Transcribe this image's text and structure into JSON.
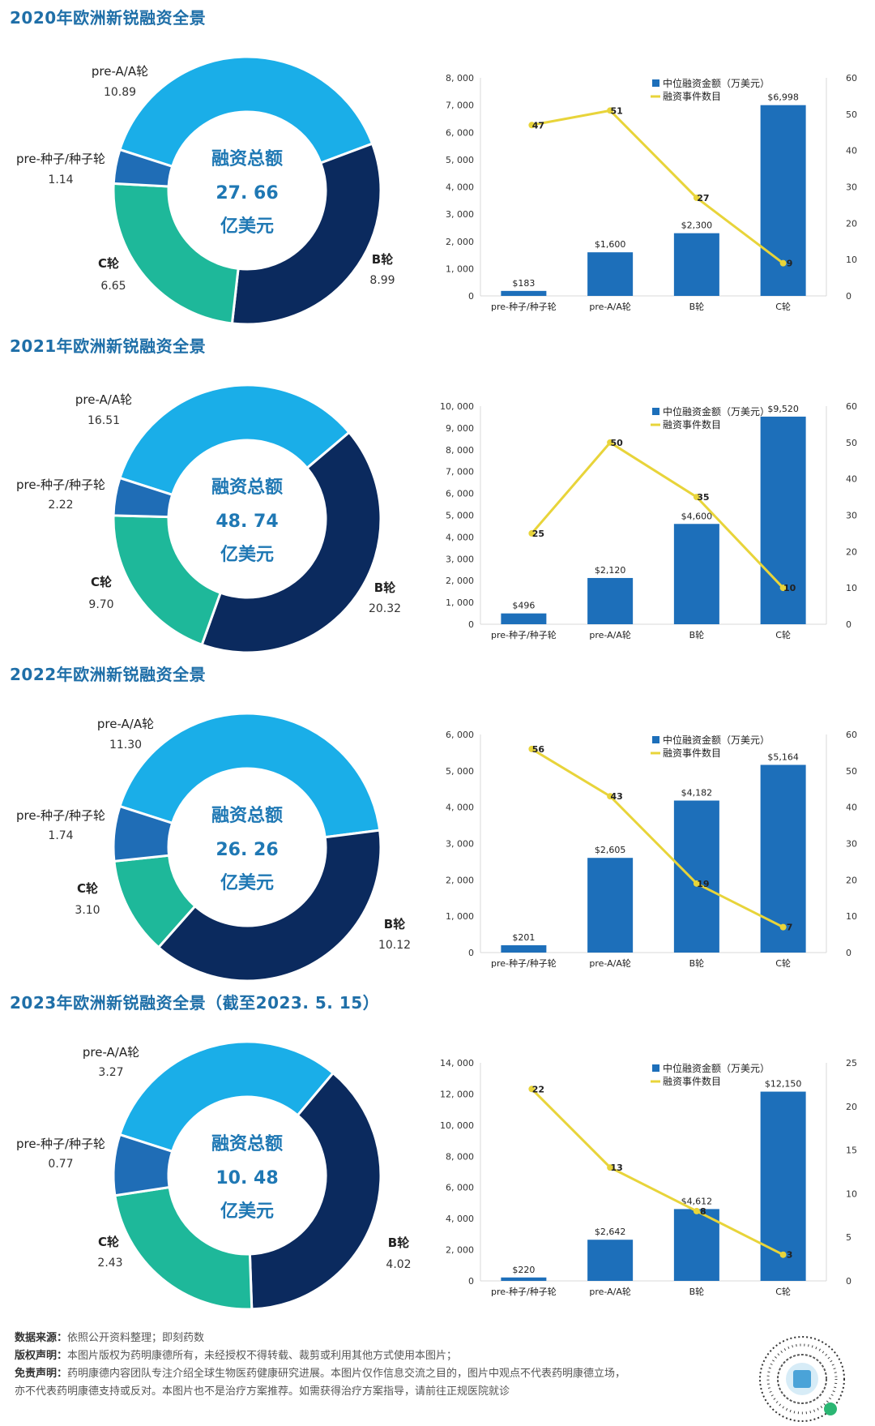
{
  "colors": {
    "light_blue": "#1aaee8",
    "dark_navy": "#0b2a5e",
    "teal": "#1eb89a",
    "mid_blue": "#1f6db6",
    "bar_blue": "#1d6fba",
    "line_yellow": "#e8d43a",
    "title_blue": "#1f6fa8"
  },
  "center_text": {
    "line1": "融资总额",
    "line3": "亿美元"
  },
  "legend": {
    "bar": "中位融资金额（万美元）",
    "line": "融资事件数目"
  },
  "sections": [
    {
      "title": "2020年欧洲新锐融资全景",
      "donut": {
        "total": "27. 66",
        "slices": [
          {
            "name": "pre-A/A轮",
            "value": "10.89",
            "color": "light_blue"
          },
          {
            "name": "B轮",
            "value": "8.99",
            "color": "dark_navy"
          },
          {
            "name": "C轮",
            "value": "6.65",
            "color": "teal"
          },
          {
            "name": "pre-种子/种子轮",
            "value": "1.14",
            "color": "mid_blue"
          }
        ]
      },
      "chart_data": {
        "type": "bar",
        "categories": [
          "pre-种子/种子轮",
          "pre-A/A轮",
          "B轮",
          "C轮"
        ],
        "series": [
          {
            "name": "中位融资金额（万美元）",
            "type": "bar",
            "axis": "left",
            "values": [
              183,
              1600,
              2300,
              6998
            ],
            "labels": [
              "$183",
              "$1,600",
              "$2,300",
              "$6,998"
            ]
          },
          {
            "name": "融资事件数目",
            "type": "line",
            "axis": "right",
            "values": [
              47,
              51,
              27,
              9
            ],
            "labels": [
              "47",
              "51",
              "27",
              "9"
            ]
          }
        ],
        "ylim": [
          0,
          8000
        ],
        "yticks": [
          "0",
          "1, 000",
          "2, 000",
          "3, 000",
          "4, 000",
          "5, 000",
          "6, 000",
          "7, 000",
          "8, 000"
        ],
        "y2lim": [
          0,
          60
        ],
        "y2ticks": [
          "0",
          "10",
          "20",
          "30",
          "40",
          "50",
          "60"
        ],
        "legend_position": "top-right"
      }
    },
    {
      "title": "2021年欧洲新锐融资全景",
      "donut": {
        "total": "48. 74",
        "slices": [
          {
            "name": "pre-A/A轮",
            "value": "16.51",
            "color": "light_blue"
          },
          {
            "name": "B轮",
            "value": "20.32",
            "color": "dark_navy"
          },
          {
            "name": "C轮",
            "value": "9.70",
            "color": "teal"
          },
          {
            "name": "pre-种子/种子轮",
            "value": "2.22",
            "color": "mid_blue"
          }
        ]
      },
      "chart_data": {
        "type": "bar",
        "categories": [
          "pre-种子/种子轮",
          "pre-A/A轮",
          "B轮",
          "C轮"
        ],
        "series": [
          {
            "name": "中位融资金额（万美元）",
            "type": "bar",
            "axis": "left",
            "values": [
              496,
              2120,
              4600,
              9520
            ],
            "labels": [
              "$496",
              "$2,120",
              "$4,600",
              "$9,520"
            ]
          },
          {
            "name": "融资事件数目",
            "type": "line",
            "axis": "right",
            "values": [
              25,
              50,
              35,
              10
            ],
            "labels": [
              "25",
              "50",
              "35",
              "10"
            ]
          }
        ],
        "ylim": [
          0,
          10000
        ],
        "yticks": [
          "0",
          "1, 000",
          "2, 000",
          "3, 000",
          "4, 000",
          "5, 000",
          "6, 000",
          "7, 000",
          "8, 000",
          "9, 000",
          "10, 000"
        ],
        "y2lim": [
          0,
          60
        ],
        "y2ticks": [
          "0",
          "10",
          "20",
          "30",
          "40",
          "50",
          "60"
        ],
        "legend_position": "top-right"
      }
    },
    {
      "title": "2022年欧洲新锐融资全景",
      "donut": {
        "total": "26. 26",
        "slices": [
          {
            "name": "pre-A/A轮",
            "value": "11.30",
            "color": "light_blue"
          },
          {
            "name": "B轮",
            "value": "10.12",
            "color": "dark_navy"
          },
          {
            "name": "C轮",
            "value": "3.10",
            "color": "teal"
          },
          {
            "name": "pre-种子/种子轮",
            "value": "1.74",
            "color": "mid_blue"
          }
        ]
      },
      "chart_data": {
        "type": "bar",
        "categories": [
          "pre-种子/种子轮",
          "pre-A/A轮",
          "B轮",
          "C轮"
        ],
        "series": [
          {
            "name": "中位融资金额（万美元）",
            "type": "bar",
            "axis": "left",
            "values": [
              201,
              2605,
              4182,
              5164
            ],
            "labels": [
              "$201",
              "$2,605",
              "$4,182",
              "$5,164"
            ]
          },
          {
            "name": "融资事件数目",
            "type": "line",
            "axis": "right",
            "values": [
              56,
              43,
              19,
              7
            ],
            "labels": [
              "56",
              "43",
              "19",
              "7"
            ]
          }
        ],
        "ylim": [
          0,
          6000
        ],
        "yticks": [
          "0",
          "1, 000",
          "2, 000",
          "3, 000",
          "4, 000",
          "5, 000",
          "6, 000"
        ],
        "y2lim": [
          0,
          60
        ],
        "y2ticks": [
          "0",
          "10",
          "20",
          "30",
          "40",
          "50",
          "60"
        ],
        "legend_position": "top-right"
      }
    },
    {
      "title": "2023年欧洲新锐融资全景（截至2023. 5. 15）",
      "donut": {
        "total": "10. 48",
        "slices": [
          {
            "name": "pre-A/A轮",
            "value": "3.27",
            "color": "light_blue"
          },
          {
            "name": "B轮",
            "value": "4.02",
            "color": "dark_navy"
          },
          {
            "name": "C轮",
            "value": "2.43",
            "color": "teal"
          },
          {
            "name": "pre-种子/种子轮",
            "value": "0.77",
            "color": "mid_blue"
          }
        ]
      },
      "chart_data": {
        "type": "bar",
        "categories": [
          "pre-种子/种子轮",
          "pre-A/A轮",
          "B轮",
          "C轮"
        ],
        "series": [
          {
            "name": "中位融资金额（万美元）",
            "type": "bar",
            "axis": "left",
            "values": [
              220,
              2642,
              4612,
              12150
            ],
            "labels": [
              "$220",
              "$2,642",
              "$4,612",
              "$12,150"
            ]
          },
          {
            "name": "融资事件数目",
            "type": "line",
            "axis": "right",
            "values": [
              22,
              13,
              8,
              3
            ],
            "labels": [
              "22",
              "13",
              "8",
              "3"
            ]
          }
        ],
        "ylim": [
          0,
          14000
        ],
        "yticks": [
          "0",
          "2, 000",
          "4, 000",
          "6, 000",
          "8, 000",
          "10, 000",
          "12, 000",
          "14, 000"
        ],
        "y2lim": [
          0,
          25
        ],
        "y2ticks": [
          "0",
          "5",
          "10",
          "15",
          "20",
          "25"
        ],
        "legend_position": "top-right"
      }
    }
  ],
  "footer": {
    "source_label": "数据来源：",
    "source_text": "依照公开资料整理；即刻药数",
    "copyright_label": "版权声明：",
    "copyright_text": "本图片版权为药明康德所有，未经授权不得转载、裁剪或利用其他方式使用本图片；",
    "disclaimer_label": "免责声明：",
    "disclaimer_text1": "药明康德内容团队专注介绍全球生物医药健康研究进展。本图片仅作信息交流之目的，图片中观点不代表药明康德立场，",
    "disclaimer_text2": "亦不代表药明康德支持或反对。本图片也不是治疗方案推荐。如需获得治疗方案指导，请前往正规医院就诊"
  },
  "qr_icon": "mini-program-qr-icon"
}
